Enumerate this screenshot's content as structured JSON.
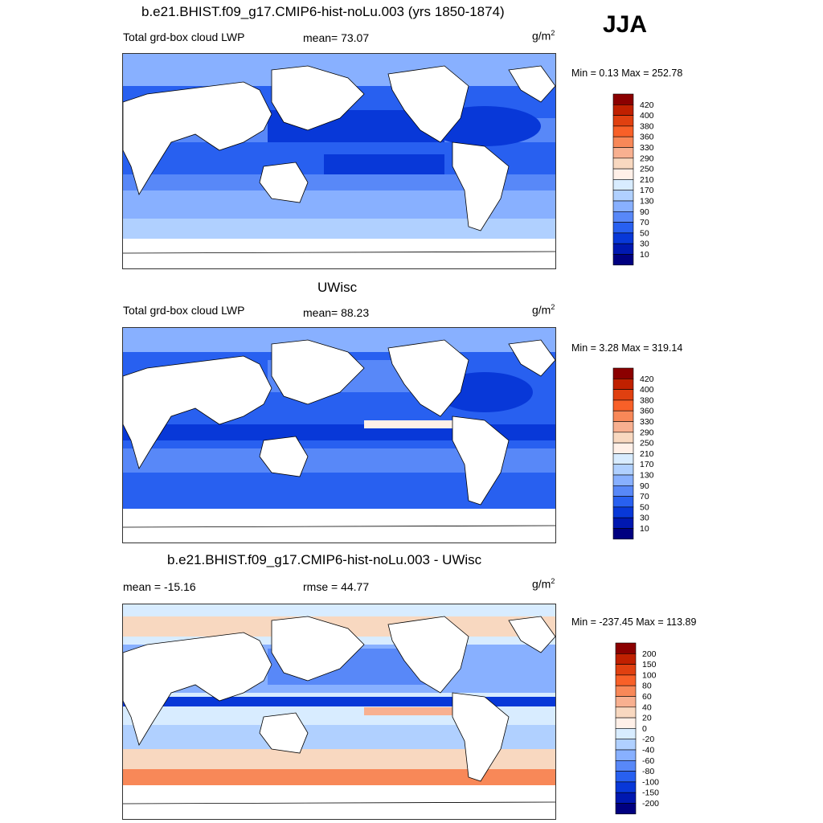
{
  "season": "JJA",
  "panels": [
    {
      "title": "b.e21.BHIST.f09_g17.CMIP6-hist-noLu.003 (yrs 1850-1874)",
      "left_label": "Total grd-box cloud LWP",
      "center_label": "mean=  73.07",
      "units": "g/m",
      "units_sup": "2",
      "minmax": "Min =   0.13 Max = 252.78"
    },
    {
      "title": "UWisc",
      "left_label": "Total grd-box cloud LWP",
      "center_label": "mean=  88.23",
      "units": "g/m",
      "units_sup": "2",
      "minmax": "Min =   3.28 Max = 319.14"
    },
    {
      "title": "b.e21.BHIST.f09_g17.CMIP6-hist-noLu.003 - UWisc",
      "left_label": "mean = -15.16",
      "center_label": "rmse =  44.77",
      "units": "g/m",
      "units_sup": "2",
      "minmax": "Min = -237.45 Max = 113.89"
    }
  ],
  "colorbars": [
    {
      "labels": [
        "420",
        "400",
        "380",
        "360",
        "330",
        "290",
        "250",
        "210",
        "170",
        "130",
        "90",
        "70",
        "50",
        "30",
        "10"
      ],
      "colors": [
        "#8b0000",
        "#c02000",
        "#e04010",
        "#f86028",
        "#f88858",
        "#f8b090",
        "#f8d8c0",
        "#fff0e8",
        "#d8ecff",
        "#b0d0ff",
        "#88b0ff",
        "#5888f8",
        "#2860f0",
        "#0838d8",
        "#0018b0",
        "#000080"
      ]
    },
    {
      "labels": [
        "420",
        "400",
        "380",
        "360",
        "330",
        "290",
        "250",
        "210",
        "170",
        "130",
        "90",
        "70",
        "50",
        "30",
        "10"
      ],
      "colors": [
        "#8b0000",
        "#c02000",
        "#e04010",
        "#f86028",
        "#f88858",
        "#f8b090",
        "#f8d8c0",
        "#fff0e8",
        "#d8ecff",
        "#b0d0ff",
        "#88b0ff",
        "#5888f8",
        "#2860f0",
        "#0838d8",
        "#0018b0",
        "#000080"
      ]
    },
    {
      "labels": [
        "200",
        "150",
        "100",
        "80",
        "60",
        "40",
        "20",
        "0",
        "-20",
        "-40",
        "-60",
        "-80",
        "-100",
        "-150",
        "-200"
      ],
      "colors": [
        "#8b0000",
        "#c02000",
        "#e04010",
        "#f86028",
        "#f88858",
        "#f8b090",
        "#f8d8c0",
        "#fff0e8",
        "#d8ecff",
        "#b0d0ff",
        "#88b0ff",
        "#5888f8",
        "#2860f0",
        "#0838d8",
        "#0018b0",
        "#000080"
      ]
    }
  ]
}
